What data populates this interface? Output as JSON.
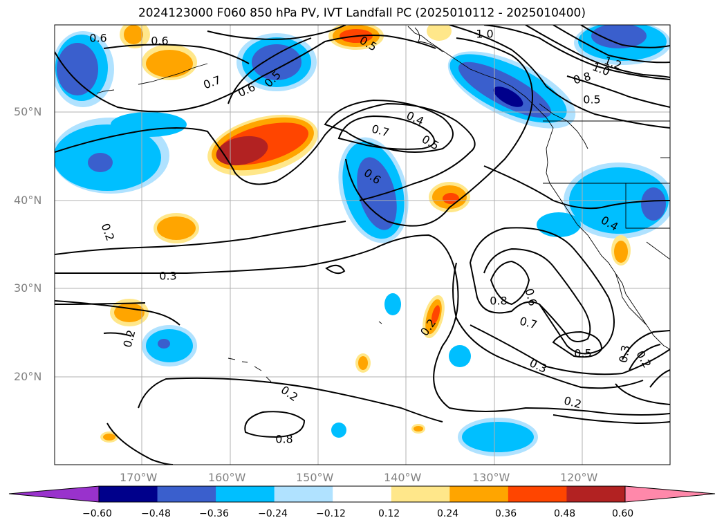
{
  "title": "2024123000 F060 850 hPa PV, IVT Landfall PC (2025010112 - 2025010400)",
  "lat_labels": [
    "50°N",
    "40°N",
    "30°N",
    "20°N"
  ],
  "lon_labels": [
    "170°W",
    "160°W",
    "150°W",
    "140°W",
    "130°W",
    "120°W"
  ],
  "colorbar": {
    "ticks": [
      "−0.60",
      "−0.48",
      "−0.36",
      "−0.24",
      "−0.12",
      "0.12",
      "0.24",
      "0.36",
      "0.48",
      "0.60"
    ],
    "colors": [
      "#9932cc",
      "#00008b",
      "#3a5fcd",
      "#00bfff",
      "#b0e2ff",
      "#ffffff",
      "#ffe78a",
      "#ffa500",
      "#ff4500",
      "#b22222",
      "#ff88aa"
    ]
  },
  "contour_labels": [
    "0.6",
    "0.6",
    "1.0",
    "0.5",
    "0.7",
    "0.6",
    "0.5",
    "1.2",
    "1.0",
    "0.8",
    "0.5",
    "0.4",
    "0.7",
    "0.5",
    "0.6",
    "0.2",
    "0.3",
    "0.4",
    "0.8",
    "0.6",
    "0.7",
    "0.2",
    "0.2",
    "0.8",
    "0.5",
    "0.3",
    "0.2",
    "0.2",
    "0.3"
  ],
  "colors": {
    "grid": "#b0b0b0",
    "contour": "#000000",
    "axis_text": "#808080"
  }
}
